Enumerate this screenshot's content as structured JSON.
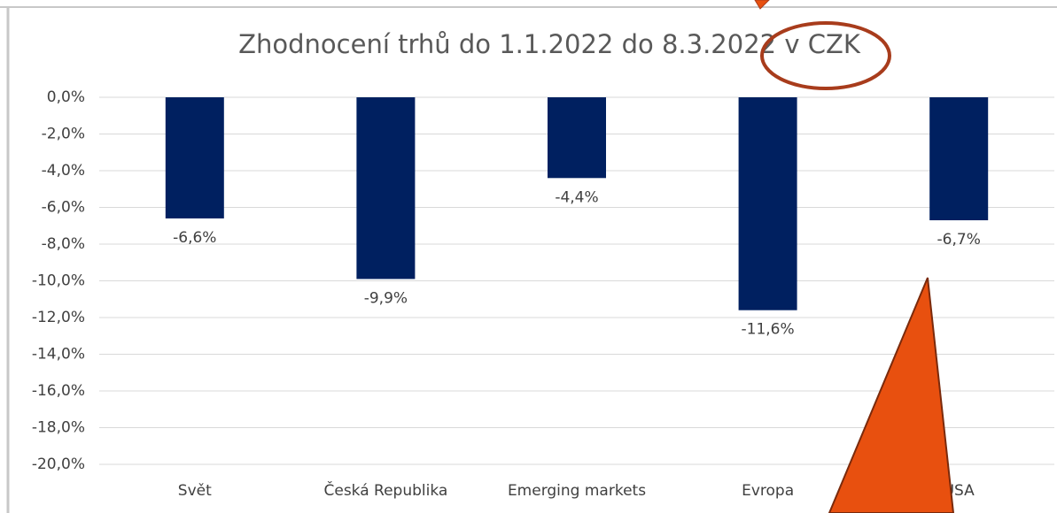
{
  "chart_data": {
    "type": "bar",
    "title": "Zhodnocení trhů do 1.1.2022 do 8.3.2022 v CZK",
    "categories": [
      "Svět",
      "Česká Republika",
      "Emerging markets",
      "Evropa",
      "USA"
    ],
    "values": [
      -6.6,
      -9.9,
      -4.4,
      -11.6,
      -6.7
    ],
    "value_labels": [
      "-6,6%",
      "-9,9%",
      "-4,4%",
      "-11,6%",
      "-6,7%"
    ],
    "color": "#002060",
    "ylim": [
      -20,
      0
    ],
    "yticks": [
      {
        "value": 0,
        "label": "0,0%"
      },
      {
        "value": -2,
        "label": "-2,0%"
      },
      {
        "value": -4,
        "label": "-4,0%"
      },
      {
        "value": -6,
        "label": "-6,0%"
      },
      {
        "value": -8,
        "label": "-8,0%"
      },
      {
        "value": -10,
        "label": "-10,0%"
      },
      {
        "value": -12,
        "label": "-12,0%"
      },
      {
        "value": -14,
        "label": "-14,0%"
      },
      {
        "value": -16,
        "label": "-16,0%"
      },
      {
        "value": -18,
        "label": "-18,0%"
      },
      {
        "value": -20,
        "label": "-20,0%"
      }
    ],
    "grid": true
  }
}
